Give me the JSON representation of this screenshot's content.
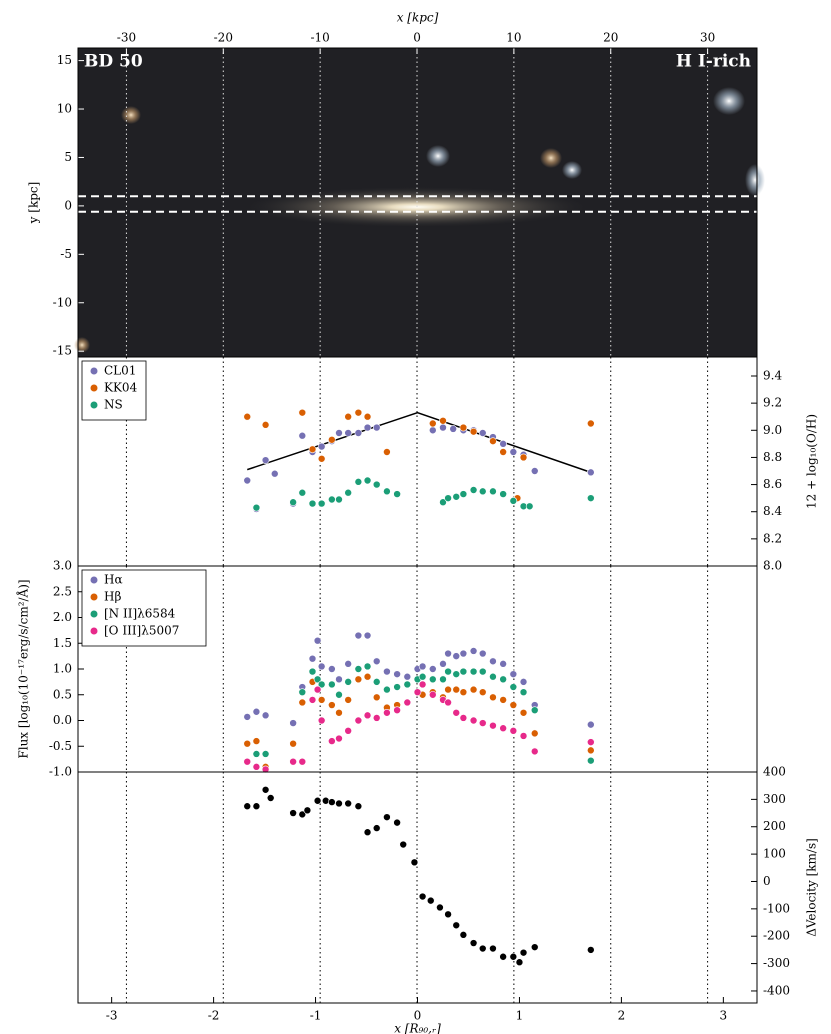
{
  "chart_data": [
    {
      "type": "image",
      "annotations": [
        "BD 50",
        "H I-rich"
      ],
      "x_label": "x [kpc]",
      "y_label": "y [kpc]",
      "xlim": [
        -35,
        35.1
      ],
      "xticks": [
        -30,
        -20,
        -10,
        0,
        10,
        20,
        30
      ],
      "ylim": [
        -15.6,
        16.3
      ],
      "yticks": [
        -15,
        -10,
        -5,
        0,
        5,
        10,
        15
      ],
      "slit_y": [
        1.0,
        -0.6
      ],
      "grid": true
    },
    {
      "type": "scatter",
      "y_label": "12 + log₁₀(O/H)",
      "yaxis_side": "right",
      "legend": "upper left",
      "xlim": [
        -3.33,
        3.33
      ],
      "ylim": [
        8.0,
        9.54
      ],
      "yticks": [
        {
          "value": 8.0,
          "label": "8.0"
        },
        8.2,
        8.4,
        8.6,
        8.8,
        {
          "value": 9.0,
          "label": "9.0"
        },
        9.2,
        9.4
      ],
      "series": [
        {
          "name": "CL01",
          "color": "#7570b3",
          "x": [
            -1.67,
            -1.58,
            -1.49,
            -1.4,
            -1.22,
            -1.13,
            -1.03,
            -0.94,
            -0.84,
            -0.77,
            -0.68,
            -0.58,
            -0.49,
            -0.4,
            0.15,
            0.25,
            0.35,
            0.45,
            0.55,
            0.64,
            0.74,
            0.84,
            0.94,
            1.04,
            1.15,
            1.7
          ],
          "values": [
            8.63,
            8.42,
            8.78,
            8.68,
            8.46,
            8.96,
            8.84,
            8.88,
            8.92,
            8.98,
            8.98,
            8.98,
            9.02,
            9.02,
            9.0,
            9.02,
            9.01,
            9.0,
            9.0,
            8.98,
            8.95,
            8.9,
            8.84,
            8.82,
            8.7,
            8.69
          ]
        },
        {
          "name": "KK04",
          "color": "#d95f02",
          "x": [
            -1.67,
            -1.49,
            -1.13,
            -1.03,
            -0.94,
            -0.84,
            -0.68,
            -0.58,
            -0.49,
            -0.3,
            0.15,
            0.25,
            0.45,
            0.55,
            0.74,
            0.84,
            0.98,
            1.04,
            1.7
          ],
          "values": [
            9.1,
            9.04,
            9.13,
            8.86,
            8.79,
            8.93,
            9.1,
            9.13,
            9.1,
            8.84,
            9.05,
            9.07,
            9.02,
            8.99,
            8.92,
            8.84,
            8.5,
            8.8,
            9.05
          ]
        },
        {
          "name": "NS",
          "color": "#1b9e77",
          "x": [
            -1.58,
            -1.22,
            -1.13,
            -1.03,
            -0.94,
            -0.84,
            -0.77,
            -0.68,
            -0.58,
            -0.49,
            -0.4,
            -0.3,
            -0.2,
            0.25,
            0.3,
            0.38,
            0.45,
            0.55,
            0.64,
            0.74,
            0.84,
            0.94,
            1.04,
            1.1,
            1.7
          ],
          "values": [
            8.43,
            8.47,
            8.54,
            8.46,
            8.46,
            8.49,
            8.49,
            8.54,
            8.62,
            8.63,
            8.6,
            8.55,
            8.53,
            8.47,
            8.5,
            8.51,
            8.53,
            8.56,
            8.55,
            8.55,
            8.53,
            8.48,
            8.44,
            8.44,
            8.5
          ]
        }
      ],
      "fit": {
        "x": [
          -1.67,
          0,
          1.7
        ],
        "values": [
          8.71,
          9.13,
          8.69
        ]
      }
    },
    {
      "type": "scatter",
      "y_label": "Flux [log₁₀(10⁻¹⁷erg/s/cm²/Å)]",
      "yaxis_side": "left",
      "legend": "upper left",
      "xlim": [
        -3.33,
        3.33
      ],
      "ylim": [
        -1.0,
        3.0
      ],
      "yticks": [
        {
          "value": -1.0,
          "label": "-1.0"
        },
        -0.5,
        {
          "value": 0.0,
          "label": "0.0"
        },
        0.5,
        {
          "value": 1.0,
          "label": "1.0"
        },
        1.5,
        {
          "value": 2.0,
          "label": "2.0"
        },
        2.5,
        {
          "value": 3.0,
          "label": "3.0"
        }
      ],
      "x": [
        -1.67,
        -1.58,
        -1.49,
        -1.22,
        -1.13,
        -1.03,
        -0.98,
        -0.94,
        -0.84,
        -0.77,
        -0.68,
        -0.58,
        -0.49,
        -0.4,
        -0.3,
        -0.2,
        -0.1,
        0.0,
        0.05,
        0.15,
        0.25,
        0.3,
        0.38,
        0.45,
        0.55,
        0.64,
        0.74,
        0.84,
        0.94,
        1.04,
        1.15,
        1.7
      ],
      "series": [
        {
          "name": "Hα",
          "color": "#7570b3",
          "values": [
            0.07,
            0.17,
            0.1,
            -0.05,
            0.65,
            1.2,
            1.55,
            1.05,
            1.0,
            0.8,
            1.1,
            1.65,
            1.65,
            1.15,
            0.95,
            0.9,
            0.85,
            1.0,
            1.05,
            1.0,
            1.1,
            1.3,
            1.25,
            1.3,
            1.35,
            1.3,
            1.15,
            1.1,
            0.9,
            0.75,
            0.3,
            -0.08
          ]
        },
        {
          "name": "Hβ",
          "color": "#d95f02",
          "values": [
            -0.45,
            -0.4,
            -0.9,
            -0.45,
            0.35,
            0.75,
            0.8,
            0.4,
            0.3,
            0.15,
            0.4,
            0.8,
            0.85,
            0.45,
            0.25,
            0.3,
            0.35,
            0.55,
            0.5,
            0.55,
            0.45,
            0.6,
            0.6,
            0.55,
            0.6,
            0.55,
            0.45,
            0.4,
            0.3,
            0.15,
            -0.25,
            -0.58
          ]
        },
        {
          "name": "[N II]λ6584",
          "color": "#1b9e77",
          "values": [
            -0.8,
            -0.65,
            -0.65,
            -0.8,
            0.55,
            0.95,
            0.8,
            0.7,
            0.7,
            0.5,
            0.75,
            1.0,
            1.05,
            0.75,
            0.6,
            0.65,
            0.7,
            0.8,
            0.85,
            0.8,
            0.8,
            0.95,
            0.9,
            0.95,
            0.95,
            0.95,
            0.85,
            0.8,
            0.65,
            0.55,
            0.2,
            -0.78
          ]
        },
        {
          "name": "[O III]λ5007",
          "color": "#e7298a",
          "values": [
            -0.8,
            -0.9,
            -0.95,
            -0.8,
            -0.8,
            0.4,
            0.6,
            0.0,
            -0.4,
            -0.35,
            -0.2,
            0.0,
            0.1,
            0.05,
            0.15,
            0.2,
            0.35,
            0.55,
            0.7,
            0.5,
            0.4,
            0.35,
            0.15,
            0.05,
            0.0,
            -0.05,
            -0.1,
            -0.15,
            -0.2,
            -0.3,
            -0.6,
            -0.42
          ]
        }
      ]
    },
    {
      "type": "scatter",
      "y_label": "ΔVelocity [km/s]",
      "x_label": "x [R₉₀,ᵣ]",
      "yaxis_side": "right",
      "xlim": [
        -3.33,
        3.33
      ],
      "xticks": [
        -3,
        -2,
        -1,
        0,
        1,
        2,
        3
      ],
      "ylim": [
        -444,
        400
      ],
      "yticks": [
        -400,
        -300,
        -200,
        -100,
        0,
        100,
        200,
        300,
        400
      ],
      "x": [
        -1.67,
        -1.58,
        -1.49,
        -1.44,
        -1.22,
        -1.13,
        -1.08,
        -0.98,
        -0.9,
        -0.84,
        -0.77,
        -0.68,
        -0.58,
        -0.49,
        -0.4,
        -0.3,
        -0.2,
        -0.14,
        -0.03,
        0.05,
        0.13,
        0.22,
        0.3,
        0.38,
        0.45,
        0.55,
        0.64,
        0.74,
        0.84,
        0.94,
        1.0,
        1.04,
        1.15,
        1.7
      ],
      "series": [
        {
          "color": "#000000",
          "values": [
            275,
            275,
            335,
            305,
            250,
            245,
            260,
            295,
            295,
            290,
            285,
            285,
            275,
            180,
            195,
            235,
            215,
            135,
            70,
            -55,
            -70,
            -95,
            -120,
            -160,
            -195,
            -225,
            -245,
            -245,
            -275,
            -275,
            -295,
            -260,
            -240,
            -250
          ]
        }
      ]
    }
  ]
}
